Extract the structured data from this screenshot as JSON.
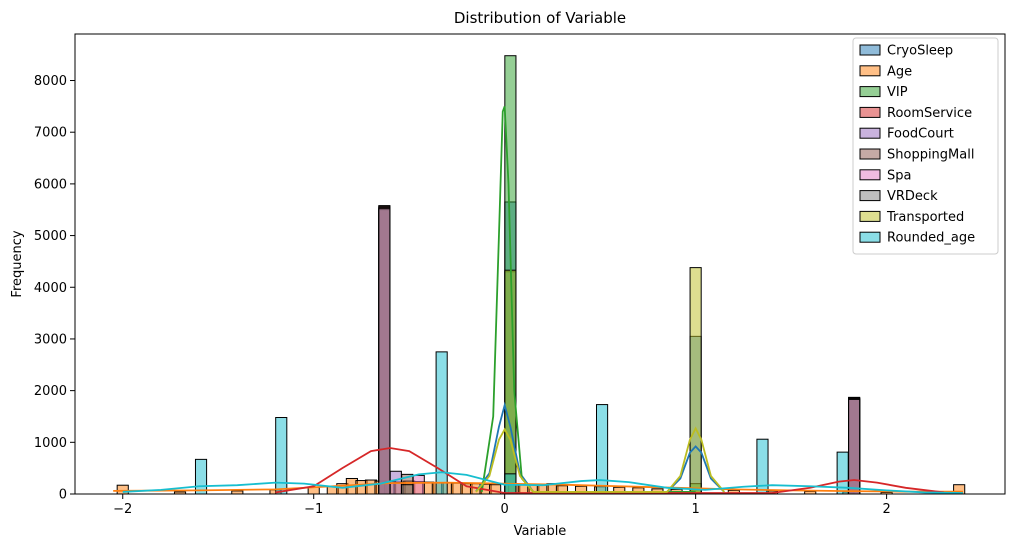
{
  "chart_data": {
    "type": "bar",
    "title": "Distribution of Variable",
    "xlabel": "Variable",
    "ylabel": "Frequency",
    "xlim": [
      -2.25,
      2.62
    ],
    "ylim": [
      0,
      8900
    ],
    "xticks": [
      -2,
      -1,
      0,
      1,
      2
    ],
    "xtick_labels": [
      "−2",
      "−1",
      "0",
      "1",
      "2"
    ],
    "yticks": [
      0,
      1000,
      2000,
      3000,
      4000,
      5000,
      6000,
      7000,
      8000
    ],
    "ytick_labels": [
      "0",
      "1000",
      "2000",
      "3000",
      "4000",
      "5000",
      "6000",
      "7000",
      "8000"
    ],
    "grid": false,
    "legend_position": "upper-right",
    "bin_width": 0.0583,
    "series": [
      {
        "name": "CryoSleep",
        "color": "#1f77b4",
        "bins": [
          [
            0.03,
            5650
          ],
          [
            0.03,
            4300
          ],
          [
            1.0,
            3050
          ]
        ],
        "kde": [
          [
            -0.15,
            50
          ],
          [
            -0.08,
            400
          ],
          [
            -0.03,
            1300
          ],
          [
            0.0,
            1720
          ],
          [
            0.03,
            1300
          ],
          [
            0.08,
            400
          ],
          [
            0.15,
            40
          ],
          [
            0.85,
            40
          ],
          [
            0.92,
            300
          ],
          [
            0.97,
            800
          ],
          [
            1.0,
            920
          ],
          [
            1.03,
            800
          ],
          [
            1.08,
            300
          ],
          [
            1.15,
            40
          ]
        ]
      },
      {
        "name": "Age",
        "color": "#ff7f0e",
        "bins": [
          [
            -2.0,
            170
          ],
          [
            -1.7,
            40
          ],
          [
            -1.4,
            60
          ],
          [
            -1.2,
            80
          ],
          [
            -1.0,
            130
          ],
          [
            -0.9,
            150
          ],
          [
            -0.85,
            200
          ],
          [
            -0.8,
            300
          ],
          [
            -0.75,
            260
          ],
          [
            -0.7,
            270
          ],
          [
            -0.65,
            250
          ],
          [
            -0.6,
            240
          ],
          [
            -0.55,
            230
          ],
          [
            -0.5,
            250
          ],
          [
            -0.45,
            240
          ],
          [
            -0.4,
            230
          ],
          [
            -0.35,
            220
          ],
          [
            -0.3,
            220
          ],
          [
            -0.25,
            210
          ],
          [
            -0.2,
            200
          ],
          [
            -0.15,
            200
          ],
          [
            -0.1,
            190
          ],
          [
            -0.05,
            180
          ],
          [
            0.05,
            190
          ],
          [
            0.1,
            190
          ],
          [
            0.15,
            180
          ],
          [
            0.2,
            170
          ],
          [
            0.25,
            200
          ],
          [
            0.3,
            160
          ],
          [
            0.4,
            150
          ],
          [
            0.5,
            140
          ],
          [
            0.6,
            130
          ],
          [
            0.7,
            120
          ],
          [
            0.8,
            100
          ],
          [
            0.9,
            90
          ],
          [
            1.0,
            80
          ],
          [
            1.2,
            70
          ],
          [
            1.4,
            60
          ],
          [
            1.6,
            50
          ],
          [
            1.8,
            40
          ],
          [
            2.0,
            30
          ],
          [
            2.38,
            180
          ]
        ],
        "kde": [
          [
            -2.05,
            60
          ],
          [
            -1.6,
            70
          ],
          [
            -1.2,
            90
          ],
          [
            -0.9,
            150
          ],
          [
            -0.6,
            210
          ],
          [
            -0.3,
            220
          ],
          [
            0.0,
            200
          ],
          [
            0.3,
            180
          ],
          [
            0.6,
            150
          ],
          [
            0.9,
            120
          ],
          [
            1.2,
            90
          ],
          [
            1.5,
            70
          ],
          [
            1.8,
            55
          ],
          [
            2.1,
            45
          ],
          [
            2.4,
            45
          ]
        ]
      },
      {
        "name": "VIP",
        "color": "#2ca02c",
        "bins": [
          [
            0.03,
            8480
          ],
          [
            1.0,
            200
          ]
        ],
        "kde": [
          [
            -0.12,
            40
          ],
          [
            -0.06,
            1500
          ],
          [
            -0.03,
            5000
          ],
          [
            -0.01,
            7400
          ],
          [
            0.0,
            7500
          ],
          [
            0.02,
            6000
          ],
          [
            0.05,
            2000
          ],
          [
            0.09,
            300
          ],
          [
            0.15,
            40
          ],
          [
            1.0,
            40
          ]
        ]
      },
      {
        "name": "RoomService",
        "color": "#d62728",
        "bins": [
          [
            -0.63,
            5580
          ],
          [
            1.83,
            1870
          ]
        ],
        "kde": [
          [
            -1.2,
            30
          ],
          [
            -1.0,
            150
          ],
          [
            -0.85,
            500
          ],
          [
            -0.7,
            830
          ],
          [
            -0.6,
            890
          ],
          [
            -0.5,
            830
          ],
          [
            -0.35,
            500
          ],
          [
            -0.2,
            150
          ],
          [
            0.0,
            20
          ],
          [
            1.4,
            20
          ],
          [
            1.6,
            120
          ],
          [
            1.75,
            240
          ],
          [
            1.83,
            270
          ],
          [
            1.95,
            220
          ],
          [
            2.1,
            120
          ],
          [
            2.3,
            30
          ]
        ]
      },
      {
        "name": "FoodCourt",
        "color": "#9467bd",
        "bins": [
          [
            -0.63,
            5500
          ],
          [
            -0.57,
            440
          ],
          [
            1.83,
            1850
          ]
        ],
        "kde": []
      },
      {
        "name": "ShoppingMall",
        "color": "#8c564b",
        "bins": [
          [
            -0.63,
            5560
          ],
          [
            -0.51,
            380
          ],
          [
            1.83,
            1860
          ]
        ],
        "kde": []
      },
      {
        "name": "Spa",
        "color": "#e377c2",
        "bins": [
          [
            -0.63,
            5540
          ],
          [
            -0.45,
            360
          ],
          [
            1.83,
            1840
          ]
        ],
        "kde": []
      },
      {
        "name": "VRDeck",
        "color": "#7f7f7f",
        "bins": [
          [
            -0.63,
            5520
          ],
          [
            -0.51,
            180
          ],
          [
            1.83,
            1830
          ]
        ],
        "kde": []
      },
      {
        "name": "Transported",
        "color": "#bcbd22",
        "bins": [
          [
            0.03,
            4330
          ],
          [
            1.0,
            4380
          ]
        ],
        "kde": [
          [
            -0.15,
            40
          ],
          [
            -0.08,
            350
          ],
          [
            -0.03,
            1050
          ],
          [
            0.0,
            1250
          ],
          [
            0.03,
            1050
          ],
          [
            0.08,
            350
          ],
          [
            0.15,
            40
          ],
          [
            0.85,
            40
          ],
          [
            0.92,
            350
          ],
          [
            0.97,
            1050
          ],
          [
            1.0,
            1270
          ],
          [
            1.03,
            1050
          ],
          [
            1.08,
            350
          ],
          [
            1.15,
            40
          ]
        ]
      },
      {
        "name": "Rounded_age",
        "color": "#17becf",
        "bins": [
          [
            -1.59,
            670
          ],
          [
            -1.17,
            1480
          ],
          [
            -0.33,
            2750
          ],
          [
            0.03,
            390
          ],
          [
            0.51,
            1730
          ],
          [
            1.35,
            1060
          ],
          [
            1.77,
            810
          ]
        ],
        "kde": [
          [
            -2.0,
            40
          ],
          [
            -1.8,
            80
          ],
          [
            -1.6,
            150
          ],
          [
            -1.4,
            170
          ],
          [
            -1.2,
            220
          ],
          [
            -1.05,
            200
          ],
          [
            -0.85,
            120
          ],
          [
            -0.65,
            200
          ],
          [
            -0.45,
            380
          ],
          [
            -0.33,
            420
          ],
          [
            -0.2,
            370
          ],
          [
            0.0,
            180
          ],
          [
            0.2,
            170
          ],
          [
            0.4,
            250
          ],
          [
            0.5,
            270
          ],
          [
            0.65,
            230
          ],
          [
            0.85,
            120
          ],
          [
            1.05,
            80
          ],
          [
            1.25,
            140
          ],
          [
            1.4,
            170
          ],
          [
            1.6,
            150
          ],
          [
            1.8,
            120
          ],
          [
            2.0,
            70
          ],
          [
            2.2,
            30
          ],
          [
            2.4,
            20
          ]
        ]
      }
    ]
  }
}
